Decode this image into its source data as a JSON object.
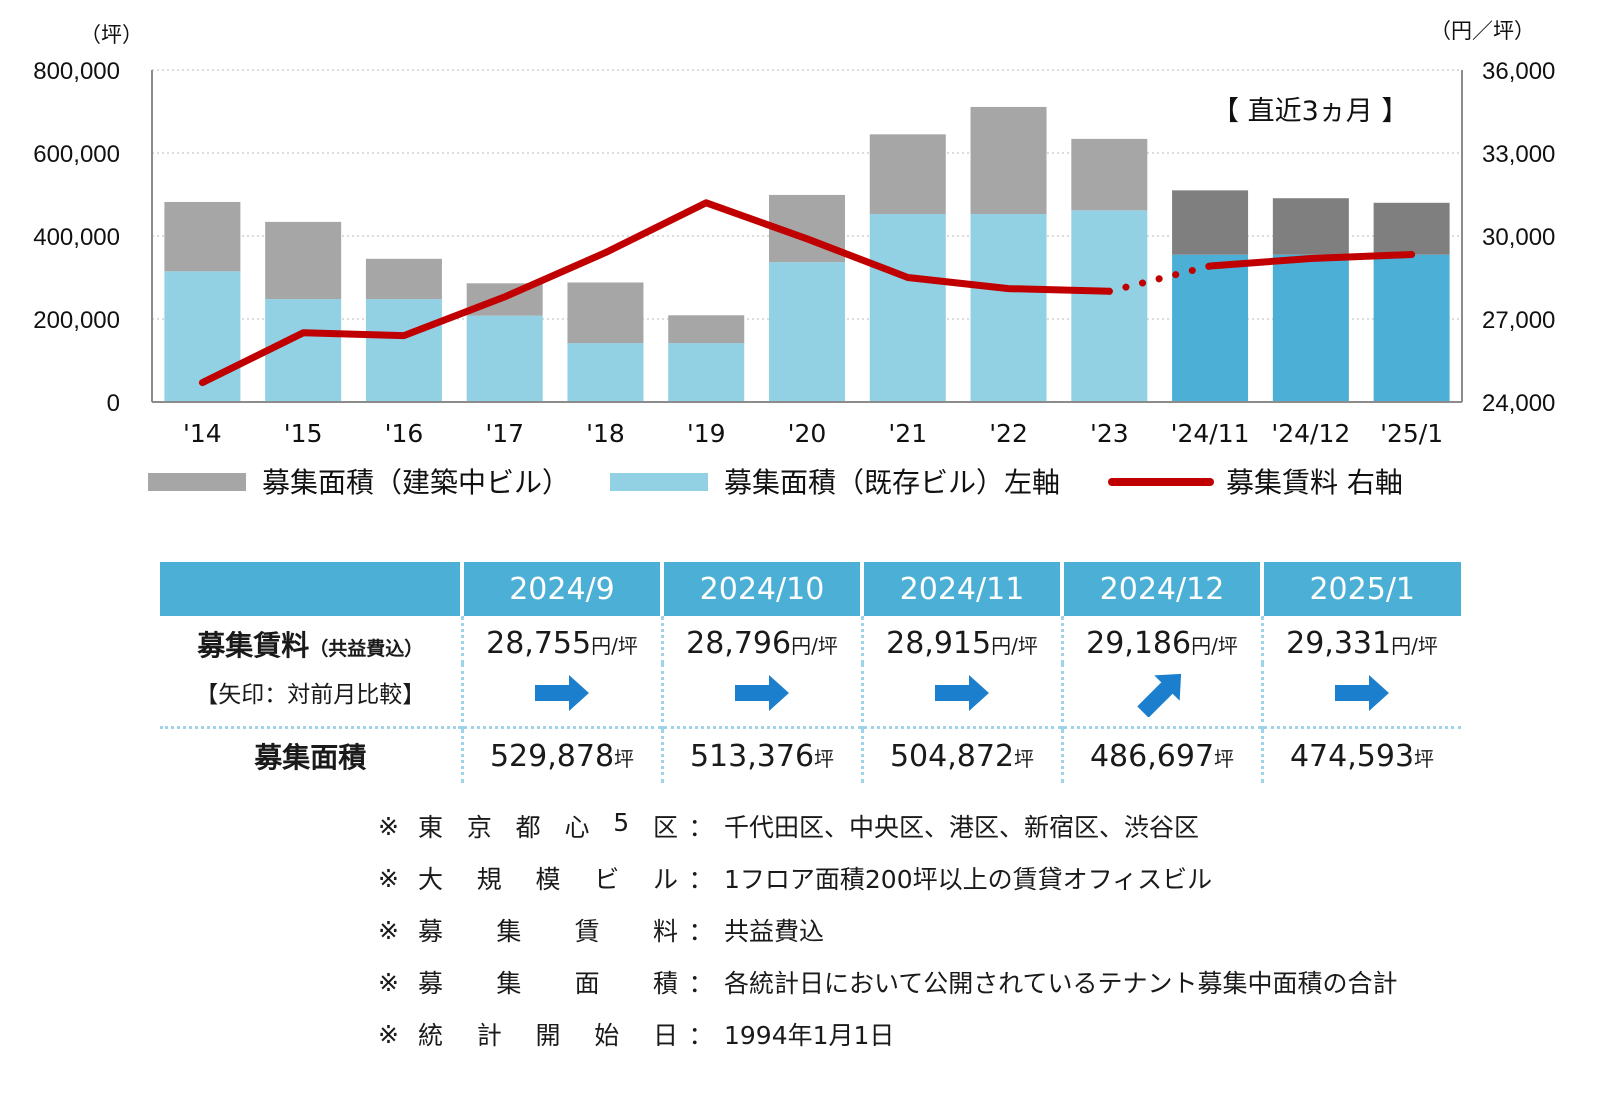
{
  "chart_data": {
    "type": "bar",
    "stacked": true,
    "categories": [
      "'14",
      "'15",
      "'16",
      "'17",
      "'18",
      "'19",
      "'20",
      "'21",
      "'22",
      "'23",
      "'24/11",
      "'24/12",
      "'25/1"
    ],
    "series": [
      {
        "name": "募集面積（既存ビル）左軸",
        "type": "bar",
        "axis": "left",
        "values": [
          315000,
          248000,
          248000,
          208000,
          142000,
          142000,
          337000,
          453000,
          453000,
          462000,
          355000,
          355000,
          355000
        ]
      },
      {
        "name": "募集面積（建築中ビル）",
        "type": "bar",
        "axis": "left",
        "values": [
          167000,
          186000,
          97000,
          78000,
          146000,
          67000,
          162000,
          192000,
          258000,
          172000,
          155000,
          136000,
          125000
        ]
      },
      {
        "name": "募集賃料 右軸",
        "type": "line",
        "axis": "right",
        "values": [
          24700,
          26500,
          26400,
          27800,
          29400,
          31200,
          29900,
          28500,
          28100,
          28000,
          28915,
          29186,
          29331
        ]
      }
    ],
    "ylim_left": [
      0,
      800000
    ],
    "ylim_right": [
      24000,
      36000
    ],
    "yticks_left": [
      "0",
      "200,000",
      "400,000",
      "600,000",
      "800,000"
    ],
    "yticks_right": [
      "24,000",
      "27,000",
      "30,000",
      "33,000",
      "36,000"
    ],
    "ylabel_left": "（坪）",
    "ylabel_right": "（円／坪）",
    "annotation": "【 直近3ヵ月 】",
    "recent_categories": [
      "'24/11",
      "'24/12",
      "'25/1"
    ],
    "legend_position": "bottom",
    "grid": true
  },
  "colors": {
    "existing": "#92d0e4",
    "existing_recent": "#4bafd6",
    "construction": "#a6a6a6",
    "construction_recent": "#7f7f7f",
    "rent_line": "#c00000",
    "header_bg": "#4bafd6",
    "arrow": "#1c7fce"
  },
  "table": {
    "months": [
      "2024/9",
      "2024/10",
      "2024/11",
      "2024/12",
      "2025/1"
    ],
    "rent_label": "募集賃料",
    "rent_label_sub": "（共益費込）",
    "arrow_label": "【矢印：対前月比較】",
    "rent_values": [
      "28,755",
      "28,796",
      "28,915",
      "29,186",
      "29,331"
    ],
    "rent_unit": "円/坪",
    "arrows": [
      "flat",
      "flat",
      "flat",
      "up",
      "flat"
    ],
    "area_label": "募集面積",
    "area_values": [
      "529,878",
      "513,376",
      "504,872",
      "486,697",
      "474,593"
    ],
    "area_unit": "坪"
  },
  "notes": [
    {
      "mark": "※",
      "key": "東京都心5区",
      "value": "千代田区、中央区、港区、新宿区、渋谷区"
    },
    {
      "mark": "※",
      "key": "大規模ビル",
      "value": "1フロア面積200坪以上の賃貸オフィスビル"
    },
    {
      "mark": "※",
      "key": "募集賃料",
      "value": "共益費込"
    },
    {
      "mark": "※",
      "key": "募集面積",
      "value": "各統計日において公開されているテナント募集中面積の合計"
    },
    {
      "mark": "※",
      "key": "統計開始日",
      "value": "1994年1月1日"
    }
  ],
  "colon": "："
}
